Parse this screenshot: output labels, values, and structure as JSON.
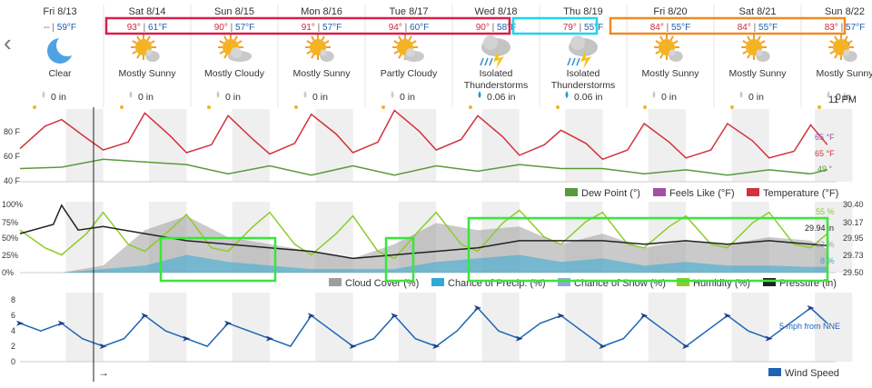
{
  "nav": {
    "prev_label": "‹",
    "next_label": "›"
  },
  "forecast": {
    "days": [
      {
        "date": "Fri 8/13",
        "hi": "--",
        "lo": "59°F",
        "icon": "moon-icon",
        "condition": [
          "Clear"
        ],
        "precip": "0 in"
      },
      {
        "date": "Sat 8/14",
        "hi": "93°",
        "lo": "61°F",
        "icon": "mostly-sunny-icon",
        "condition": [
          "Mostly Sunny"
        ],
        "precip": "0 in"
      },
      {
        "date": "Sun 8/15",
        "hi": "90°",
        "lo": "57°F",
        "icon": "mostly-cloudy-icon",
        "condition": [
          "Mostly Cloudy"
        ],
        "precip": "0 in"
      },
      {
        "date": "Mon 8/16",
        "hi": "91°",
        "lo": "57°F",
        "icon": "mostly-sunny-icon",
        "condition": [
          "Mostly Sunny"
        ],
        "precip": "0 in"
      },
      {
        "date": "Tue 8/17",
        "hi": "94°",
        "lo": "60°F",
        "icon": "partly-cloudy-icon",
        "condition": [
          "Partly Cloudy"
        ],
        "precip": "0 in"
      },
      {
        "date": "Wed 8/18",
        "hi": "90°",
        "lo": "58°F",
        "icon": "thunderstorm-icon",
        "condition": [
          "Isolated",
          "Thunderstorms"
        ],
        "precip": "0.06 in"
      },
      {
        "date": "Thu 8/19",
        "hi": "79°",
        "lo": "55°F",
        "icon": "thunderstorm-icon",
        "condition": [
          "Isolated",
          "Thunderstorms"
        ],
        "precip": "0.06 in"
      },
      {
        "date": "Fri 8/20",
        "hi": "84°",
        "lo": "55°F",
        "icon": "mostly-sunny-icon",
        "condition": [
          "Mostly Sunny"
        ],
        "precip": "0 in"
      },
      {
        "date": "Sat 8/21",
        "hi": "84°",
        "lo": "55°F",
        "icon": "mostly-sunny-icon",
        "condition": [
          "Mostly Sunny"
        ],
        "precip": "0 in"
      },
      {
        "date": "Sun 8/22",
        "hi": "83°",
        "lo": "57°F",
        "icon": "mostly-sunny-icon",
        "condition": [
          "Mostly Sunny"
        ],
        "precip": "0 in"
      }
    ],
    "time_label": "11 PM",
    "colors": {
      "hi": "#d0283a",
      "lo": "#1f5fa8",
      "cloud": "#b0b0b0",
      "rain_drop": "#2196d3"
    }
  },
  "chart_data": [
    {
      "type": "line",
      "name": "temperature-panel",
      "y_ticks": [
        "80 F",
        "60 F",
        "40 F"
      ],
      "ylim": [
        40,
        95
      ],
      "series": [
        {
          "name": "Temperature (°F)",
          "color": "#d2323c",
          "current_label": "65 °F",
          "x": [
            0,
            0.3,
            0.5,
            0.8,
            1.0,
            1.3,
            1.5,
            1.8,
            2.0,
            2.3,
            2.5,
            2.8,
            3.0,
            3.3,
            3.5,
            3.8,
            4.0,
            4.3,
            4.5,
            4.8,
            5.0,
            5.3,
            5.5,
            5.8,
            6.0,
            6.3,
            6.5,
            6.8,
            7.0,
            7.3,
            7.5,
            7.8,
            8.0,
            8.3,
            8.5,
            8.8,
            9.0,
            9.3,
            9.5,
            9.7
          ],
          "y": [
            65,
            82,
            87,
            73,
            64,
            70,
            92,
            75,
            62,
            68,
            90,
            72,
            61,
            69,
            91,
            76,
            62,
            70,
            94,
            78,
            64,
            72,
            90,
            74,
            60,
            68,
            79,
            69,
            57,
            64,
            84,
            70,
            58,
            64,
            84,
            71,
            58,
            63,
            83,
            68
          ]
        },
        {
          "name": "Feels Like (°F)",
          "color": "#a44fa4",
          "current_label": "65 °F",
          "values": []
        },
        {
          "name": "Dew Point (°)",
          "color": "#5a9a3c",
          "current_label": "49 °",
          "x": [
            0,
            0.5,
            1.0,
            1.5,
            2.0,
            2.5,
            3.0,
            3.5,
            4.0,
            4.5,
            5.0,
            5.5,
            6.0,
            6.5,
            7.0,
            7.5,
            8.0,
            8.5,
            9.0,
            9.5,
            9.7
          ],
          "y": [
            50,
            51,
            57,
            55,
            53,
            46,
            52,
            45,
            52,
            45,
            52,
            48,
            53,
            50,
            50,
            46,
            49,
            45,
            49,
            46,
            49
          ]
        }
      ]
    },
    {
      "type": "area",
      "name": "humidity-panel",
      "y_ticks_left": [
        "100%",
        "75%",
        "50%",
        "25%",
        "0%"
      ],
      "y_ticks_right": [
        "30.40",
        "30.17",
        "29.95",
        "29.73",
        "29.50"
      ],
      "series": [
        {
          "name": "Cloud Cover (%)",
          "color": "#9e9e9e",
          "current_label": "33 %",
          "x": [
            0,
            0.5,
            1.0,
            1.5,
            2.0,
            2.5,
            3.0,
            3.5,
            4.0,
            4.5,
            5.0,
            5.5,
            6.0,
            6.5,
            7.0,
            7.5,
            8.0,
            8.5,
            9.0,
            9.5,
            9.7
          ],
          "y": [
            0,
            0,
            10,
            60,
            80,
            50,
            40,
            30,
            20,
            40,
            70,
            60,
            65,
            40,
            55,
            35,
            45,
            40,
            50,
            45,
            33
          ]
        },
        {
          "name": "Chance of Precip. (%)",
          "color": "#31a9d6",
          "current_label": "8 %",
          "x": [
            0,
            0.5,
            1.0,
            1.5,
            2.0,
            2.5,
            3.0,
            3.5,
            4.0,
            4.5,
            5.0,
            5.5,
            6.0,
            6.5,
            7.0,
            7.5,
            8.0,
            8.5,
            9.0,
            9.5,
            9.7
          ],
          "y": [
            0,
            0,
            5,
            10,
            25,
            15,
            10,
            5,
            5,
            5,
            15,
            20,
            25,
            15,
            20,
            10,
            15,
            10,
            10,
            8,
            8
          ]
        },
        {
          "name": "Chance of Snow (%)",
          "color": "#8fa9d9",
          "values": []
        },
        {
          "name": "Humidity (%)",
          "color": "#8ccc2a",
          "current_label": "55 %",
          "x": [
            0,
            0.3,
            0.5,
            0.8,
            1.0,
            1.3,
            1.5,
            1.8,
            2.0,
            2.3,
            2.5,
            2.8,
            3.0,
            3.3,
            3.5,
            3.8,
            4.0,
            4.3,
            4.5,
            4.8,
            5.0,
            5.3,
            5.5,
            5.8,
            6.0,
            6.3,
            6.5,
            6.8,
            7.0,
            7.3,
            7.5,
            7.8,
            8.0,
            8.3,
            8.5,
            8.8,
            9.0,
            9.3,
            9.5,
            9.7
          ],
          "y": [
            60,
            35,
            25,
            55,
            85,
            40,
            30,
            60,
            82,
            35,
            30,
            65,
            85,
            40,
            25,
            55,
            80,
            30,
            20,
            60,
            85,
            40,
            30,
            70,
            88,
            50,
            40,
            72,
            85,
            40,
            35,
            65,
            80,
            40,
            35,
            70,
            85,
            40,
            35,
            55
          ]
        },
        {
          "name": "Pressure (in)",
          "color": "#222222",
          "current_label": "29.94 in",
          "x": [
            0,
            0.4,
            0.5,
            0.7,
            1.0,
            1.5,
            2.0,
            2.5,
            3.0,
            3.5,
            4.0,
            4.5,
            5.0,
            5.5,
            6.0,
            6.5,
            7.0,
            7.5,
            8.0,
            8.5,
            9.0,
            9.5,
            9.7
          ],
          "y": [
            55,
            68,
            95,
            60,
            65,
            55,
            45,
            40,
            35,
            30,
            20,
            25,
            30,
            35,
            45,
            45,
            45,
            40,
            45,
            40,
            45,
            40,
            38
          ]
        }
      ],
      "highlight_color": "#39e63a"
    },
    {
      "type": "line",
      "name": "wind-panel",
      "y_ticks": [
        "8",
        "6",
        "4",
        "2",
        "0"
      ],
      "ylim": [
        0,
        9
      ],
      "series": [
        {
          "name": "Wind Speed",
          "color": "#1d64b4",
          "current_label": "5 mph from NNE",
          "x": [
            0,
            0.25,
            0.5,
            0.75,
            1.0,
            1.25,
            1.5,
            1.75,
            2.0,
            2.25,
            2.5,
            2.75,
            3.0,
            3.25,
            3.5,
            3.75,
            4.0,
            4.25,
            4.5,
            4.75,
            5.0,
            5.25,
            5.5,
            5.75,
            6.0,
            6.25,
            6.5,
            6.75,
            7.0,
            7.25,
            7.5,
            7.75,
            8.0,
            8.25,
            8.5,
            8.75,
            9.0,
            9.25,
            9.5,
            9.7
          ],
          "y": [
            5,
            4,
            5,
            3,
            2,
            3,
            6,
            4,
            3,
            2,
            5,
            4,
            3,
            2,
            6,
            4,
            2,
            3,
            6,
            3,
            2,
            4,
            7,
            4,
            3,
            5,
            6,
            4,
            2,
            3,
            6,
            4,
            2,
            4,
            6,
            4,
            3,
            5,
            7,
            5
          ]
        }
      ],
      "arrow_label": "→"
    }
  ]
}
